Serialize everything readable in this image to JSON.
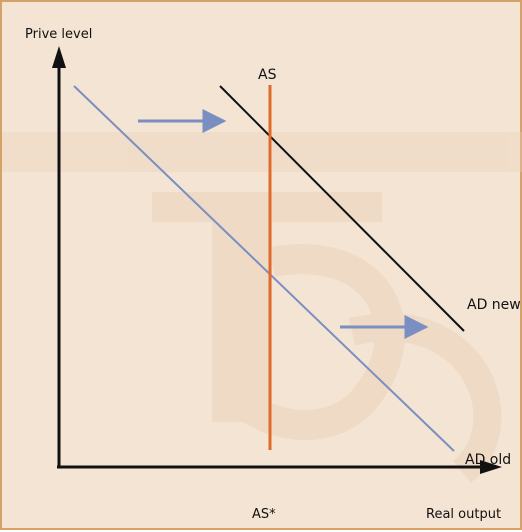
{
  "colors": {
    "background": "#f3e4d3",
    "frame": "#d6a069",
    "axis": "#111111",
    "ad_old": "#7b8ec1",
    "ad_new": "#111111",
    "as": "#e06a2a",
    "shift_arrow": "#7b8ec1"
  },
  "labels": {
    "y_axis": "Prive level",
    "x_axis": "Real output",
    "as_top": "AS",
    "as_bottom": "AS*",
    "ad_new": "AD new",
    "ad_old": "AD old"
  },
  "icons": [
    "shift-right-arrow-icon",
    "shift-right-arrow-icon"
  ]
}
